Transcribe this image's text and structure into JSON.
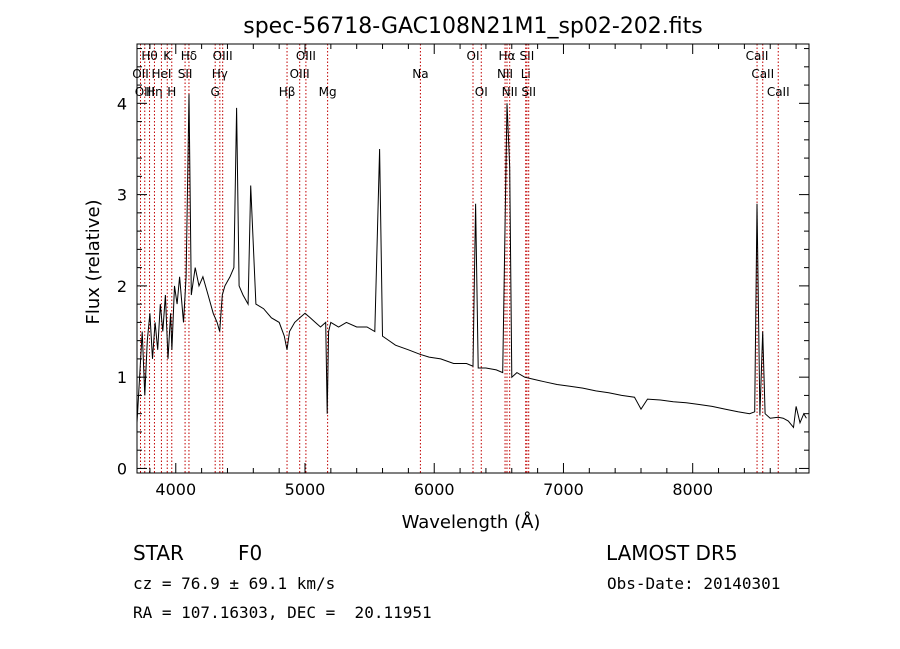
{
  "chart_data": {
    "type": "line",
    "title": "spec-56718-GAC108N21M1_sp02-202.fits",
    "xlabel": "Wavelength (Å)",
    "ylabel": "Flux (relative)",
    "xlim": [
      3700,
      8900
    ],
    "ylim": [
      -0.05,
      4.65
    ],
    "x_ticks": [
      4000,
      5000,
      6000,
      7000,
      8000
    ],
    "y_ticks": [
      0,
      1,
      2,
      3,
      4
    ],
    "grid": false,
    "colors": {
      "spectrum": "#000000",
      "line_markers": "#c00000",
      "axes": "#000000"
    },
    "series": [
      {
        "x": [
          3700,
          3720,
          3740,
          3760,
          3780,
          3800,
          3820,
          3840,
          3860,
          3880,
          3900,
          3920,
          3940,
          3960,
          3970,
          3990,
          4010,
          4030,
          4060,
          4080,
          4102,
          4120,
          4150,
          4180,
          4210,
          4250,
          4290,
          4320,
          4340,
          4360,
          4380,
          4420,
          4450,
          4471,
          4490,
          4520,
          4560,
          4580,
          4620,
          4680,
          4740,
          4800,
          4840,
          4861,
          4880,
          4920,
          4960,
          5000,
          5040,
          5080,
          5120,
          5160,
          5172,
          5183,
          5200,
          5260,
          5320,
          5400,
          5480,
          5540,
          5577,
          5600,
          5650,
          5700,
          5800,
          5890,
          5960,
          6050,
          6150,
          6250,
          6300,
          6320,
          6340,
          6400,
          6480,
          6530,
          6563,
          6584,
          6600,
          6640,
          6700,
          6760,
          6850,
          6950,
          7050,
          7150,
          7250,
          7350,
          7450,
          7550,
          7600,
          7650,
          7750,
          7850,
          7950,
          8050,
          8150,
          8250,
          8350,
          8440,
          8480,
          8498,
          8520,
          8542,
          8560,
          8600,
          8662,
          8700,
          8740,
          8780,
          8800,
          8830,
          8860,
          8880
        ],
        "y": [
          0.5,
          1.0,
          1.5,
          0.8,
          1.4,
          1.7,
          1.2,
          1.6,
          1.3,
          1.8,
          1.5,
          1.9,
          1.2,
          1.7,
          1.3,
          2.0,
          1.8,
          2.1,
          1.6,
          2.1,
          4.1,
          1.9,
          2.2,
          2.0,
          2.1,
          1.9,
          1.7,
          1.6,
          1.5,
          1.9,
          2.0,
          2.1,
          2.2,
          3.95,
          2.0,
          1.9,
          1.8,
          3.1,
          1.8,
          1.75,
          1.65,
          1.6,
          1.45,
          1.3,
          1.5,
          1.6,
          1.65,
          1.7,
          1.65,
          1.6,
          1.55,
          1.6,
          0.6,
          1.5,
          1.6,
          1.55,
          1.6,
          1.55,
          1.55,
          1.5,
          3.5,
          1.45,
          1.4,
          1.35,
          1.3,
          1.25,
          1.22,
          1.2,
          1.15,
          1.15,
          1.12,
          2.9,
          1.1,
          1.1,
          1.08,
          1.05,
          4.0,
          3.3,
          1.0,
          1.05,
          1.0,
          0.98,
          0.95,
          0.92,
          0.9,
          0.88,
          0.85,
          0.83,
          0.8,
          0.78,
          0.65,
          0.76,
          0.75,
          0.73,
          0.72,
          0.7,
          0.68,
          0.65,
          0.62,
          0.6,
          0.62,
          2.9,
          0.58,
          1.5,
          0.6,
          0.55,
          0.56,
          0.55,
          0.52,
          0.45,
          0.68,
          0.5,
          0.6,
          0.55
        ]
      }
    ],
    "line_markers": [
      {
        "label": "Hθ",
        "x": 3797,
        "row": 1
      },
      {
        "label": "OII",
        "x": 3727,
        "row": 2
      },
      {
        "label": "OIII",
        "x": 3760,
        "row": 3
      },
      {
        "label": "Hη",
        "x": 3835,
        "row": 3
      },
      {
        "label": "HeI",
        "x": 3889,
        "row": 2
      },
      {
        "label": "K",
        "x": 3934,
        "row": 1
      },
      {
        "label": "H",
        "x": 3969,
        "row": 3
      },
      {
        "label": "SII",
        "x": 4072,
        "row": 2
      },
      {
        "label": "Hδ",
        "x": 4102,
        "row": 1
      },
      {
        "label": "Hγ",
        "x": 4341,
        "row": 2
      },
      {
        "label": "G",
        "x": 4305,
        "row": 3
      },
      {
        "label": "OIII",
        "x": 4363,
        "row": 1
      },
      {
        "label": "Hβ",
        "x": 4861,
        "row": 3
      },
      {
        "label": "OIII",
        "x": 4959,
        "row": 2
      },
      {
        "label": "OIII",
        "x": 5007,
        "row": 1
      },
      {
        "label": "Mg",
        "x": 5175,
        "row": 3
      },
      {
        "label": "Na",
        "x": 5893,
        "row": 2
      },
      {
        "label": "OI",
        "x": 6300,
        "row": 1
      },
      {
        "label": "OI",
        "x": 6364,
        "row": 3
      },
      {
        "label": "Hα",
        "x": 6563,
        "row": 1
      },
      {
        "label": "NII",
        "x": 6548,
        "row": 2
      },
      {
        "label": "NII",
        "x": 6584,
        "row": 3
      },
      {
        "label": "SII",
        "x": 6717,
        "row": 1
      },
      {
        "label": "Li",
        "x": 6708,
        "row": 2
      },
      {
        "label": "SII",
        "x": 6731,
        "row": 3
      },
      {
        "label": "CaII",
        "x": 8498,
        "row": 1
      },
      {
        "label": "CaII",
        "x": 8542,
        "row": 2
      },
      {
        "label": "CaII",
        "x": 8662,
        "row": 3
      }
    ]
  },
  "info": {
    "object_class": "STAR",
    "subclass": "F0",
    "survey": "LAMOST DR5",
    "redshift_line": "cz = 76.9 ± 69.1 km/s",
    "obs_date_line": "Obs-Date: 20140301",
    "coords_line": "RA = 107.16303, DEC =  20.11951"
  }
}
